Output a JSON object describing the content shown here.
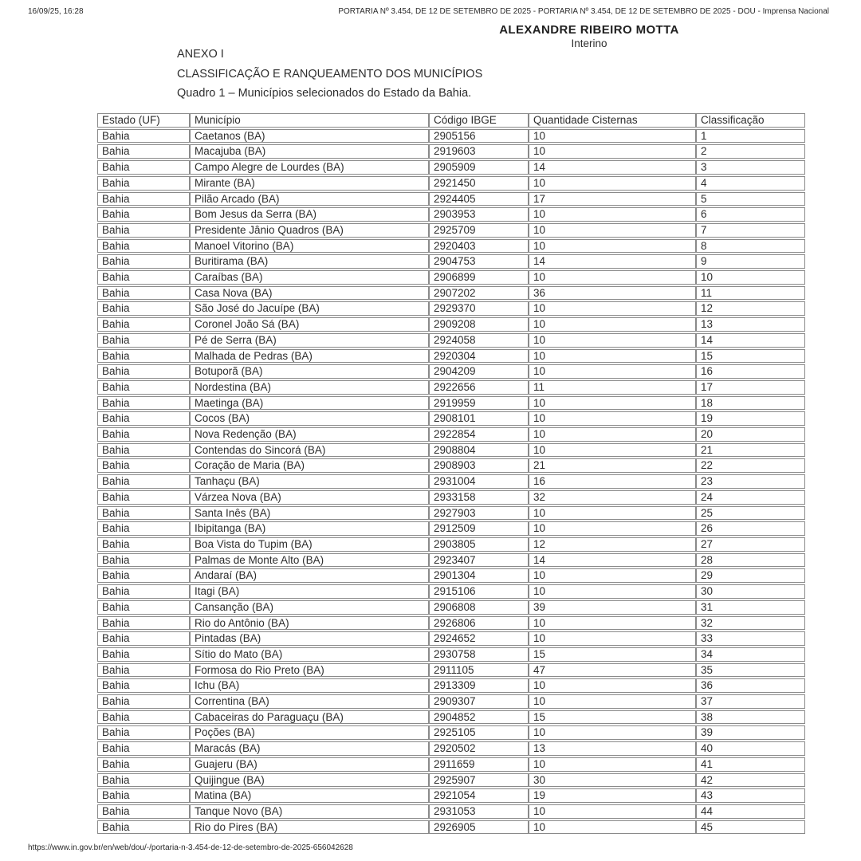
{
  "page": {
    "printed_at": "16/09/25, 16:28",
    "browser_title": "PORTARIA Nº 3.454, DE 12 DE SETEMBRO DE 2025 - PORTARIA Nº 3.454, DE 12 DE SETEMBRO DE 2025 - DOU - Imprensa Nacional",
    "footer_url": "https://www.in.gov.br/en/web/dou/-/portaria-n-3.454-de-12-de-setembro-de-2025-656042628"
  },
  "signature": {
    "name": "ALEXANDRE RIBEIRO MOTTA",
    "role": "Interino"
  },
  "document": {
    "annex_title": "ANEXO I",
    "section_title": "CLASSIFICAÇÃO E RANQUEAMENTO DOS MUNICÍPIOS",
    "table_caption": "Quadro 1 – Municípios selecionados do Estado da Bahia."
  },
  "table": {
    "columns": [
      "Estado (UF)",
      "Município",
      "Código IBGE",
      "Quantidade Cisternas",
      "Classificação"
    ],
    "rows": [
      {
        "estado": "Bahia",
        "municipio": "Caetanos (BA)",
        "codigo_ibge": "2905156",
        "quantidade_cisternas": "10",
        "classificacao": "1"
      },
      {
        "estado": "Bahia",
        "municipio": "Macajuba (BA)",
        "codigo_ibge": "2919603",
        "quantidade_cisternas": "10",
        "classificacao": "2"
      },
      {
        "estado": "Bahia",
        "municipio": "Campo Alegre de Lourdes (BA)",
        "codigo_ibge": "2905909",
        "quantidade_cisternas": "14",
        "classificacao": "3"
      },
      {
        "estado": "Bahia",
        "municipio": "Mirante (BA)",
        "codigo_ibge": "2921450",
        "quantidade_cisternas": "10",
        "classificacao": "4"
      },
      {
        "estado": "Bahia",
        "municipio": "Pilão Arcado (BA)",
        "codigo_ibge": "2924405",
        "quantidade_cisternas": "17",
        "classificacao": "5"
      },
      {
        "estado": "Bahia",
        "municipio": "Bom Jesus da Serra (BA)",
        "codigo_ibge": "2903953",
        "quantidade_cisternas": "10",
        "classificacao": "6"
      },
      {
        "estado": "Bahia",
        "municipio": "Presidente Jânio Quadros (BA)",
        "codigo_ibge": "2925709",
        "quantidade_cisternas": "10",
        "classificacao": "7"
      },
      {
        "estado": "Bahia",
        "municipio": "Manoel Vitorino (BA)",
        "codigo_ibge": "2920403",
        "quantidade_cisternas": "10",
        "classificacao": "8"
      },
      {
        "estado": "Bahia",
        "municipio": "Buritirama (BA)",
        "codigo_ibge": "2904753",
        "quantidade_cisternas": "14",
        "classificacao": "9"
      },
      {
        "estado": "Bahia",
        "municipio": "Caraíbas (BA)",
        "codigo_ibge": "2906899",
        "quantidade_cisternas": "10",
        "classificacao": "10"
      },
      {
        "estado": "Bahia",
        "municipio": "Casa Nova (BA)",
        "codigo_ibge": "2907202",
        "quantidade_cisternas": "36",
        "classificacao": "11"
      },
      {
        "estado": "Bahia",
        "municipio": "São José do Jacuípe (BA)",
        "codigo_ibge": "2929370",
        "quantidade_cisternas": "10",
        "classificacao": "12"
      },
      {
        "estado": "Bahia",
        "municipio": "Coronel João Sá (BA)",
        "codigo_ibge": "2909208",
        "quantidade_cisternas": "10",
        "classificacao": "13"
      },
      {
        "estado": "Bahia",
        "municipio": "Pé de Serra (BA)",
        "codigo_ibge": "2924058",
        "quantidade_cisternas": "10",
        "classificacao": "14"
      },
      {
        "estado": "Bahia",
        "municipio": "Malhada de Pedras (BA)",
        "codigo_ibge": "2920304",
        "quantidade_cisternas": "10",
        "classificacao": "15"
      },
      {
        "estado": "Bahia",
        "municipio": "Botuporã (BA)",
        "codigo_ibge": "2904209",
        "quantidade_cisternas": "10",
        "classificacao": "16"
      },
      {
        "estado": "Bahia",
        "municipio": "Nordestina (BA)",
        "codigo_ibge": "2922656",
        "quantidade_cisternas": "11",
        "classificacao": "17"
      },
      {
        "estado": "Bahia",
        "municipio": "Maetinga (BA)",
        "codigo_ibge": "2919959",
        "quantidade_cisternas": "10",
        "classificacao": "18"
      },
      {
        "estado": "Bahia",
        "municipio": "Cocos (BA)",
        "codigo_ibge": "2908101",
        "quantidade_cisternas": "10",
        "classificacao": "19"
      },
      {
        "estado": "Bahia",
        "municipio": "Nova Redenção (BA)",
        "codigo_ibge": "2922854",
        "quantidade_cisternas": "10",
        "classificacao": "20"
      },
      {
        "estado": "Bahia",
        "municipio": "Contendas do Sincorá (BA)",
        "codigo_ibge": "2908804",
        "quantidade_cisternas": "10",
        "classificacao": "21"
      },
      {
        "estado": "Bahia",
        "municipio": "Coração de Maria (BA)",
        "codigo_ibge": "2908903",
        "quantidade_cisternas": "21",
        "classificacao": "22"
      },
      {
        "estado": "Bahia",
        "municipio": "Tanhaçu (BA)",
        "codigo_ibge": "2931004",
        "quantidade_cisternas": "16",
        "classificacao": "23"
      },
      {
        "estado": "Bahia",
        "municipio": "Várzea Nova (BA)",
        "codigo_ibge": "2933158",
        "quantidade_cisternas": "32",
        "classificacao": "24"
      },
      {
        "estado": "Bahia",
        "municipio": "Santa Inês (BA)",
        "codigo_ibge": "2927903",
        "quantidade_cisternas": "10",
        "classificacao": "25"
      },
      {
        "estado": "Bahia",
        "municipio": "Ibipitanga (BA)",
        "codigo_ibge": "2912509",
        "quantidade_cisternas": "10",
        "classificacao": "26"
      },
      {
        "estado": "Bahia",
        "municipio": "Boa Vista do Tupim (BA)",
        "codigo_ibge": "2903805",
        "quantidade_cisternas": "12",
        "classificacao": "27"
      },
      {
        "estado": "Bahia",
        "municipio": "Palmas de Monte Alto (BA)",
        "codigo_ibge": "2923407",
        "quantidade_cisternas": "14",
        "classificacao": "28"
      },
      {
        "estado": "Bahia",
        "municipio": "Andaraí (BA)",
        "codigo_ibge": "2901304",
        "quantidade_cisternas": "10",
        "classificacao": "29"
      },
      {
        "estado": "Bahia",
        "municipio": "Itagi (BA)",
        "codigo_ibge": "2915106",
        "quantidade_cisternas": "10",
        "classificacao": "30"
      },
      {
        "estado": "Bahia",
        "municipio": "Cansanção (BA)",
        "codigo_ibge": "2906808",
        "quantidade_cisternas": "39",
        "classificacao": "31"
      },
      {
        "estado": "Bahia",
        "municipio": "Rio do Antônio (BA)",
        "codigo_ibge": "2926806",
        "quantidade_cisternas": "10",
        "classificacao": "32"
      },
      {
        "estado": "Bahia",
        "municipio": "Pintadas (BA)",
        "codigo_ibge": "2924652",
        "quantidade_cisternas": "10",
        "classificacao": "33"
      },
      {
        "estado": "Bahia",
        "municipio": "Sítio do Mato (BA)",
        "codigo_ibge": "2930758",
        "quantidade_cisternas": "15",
        "classificacao": "34"
      },
      {
        "estado": "Bahia",
        "municipio": "Formosa do Rio Preto (BA)",
        "codigo_ibge": "2911105",
        "quantidade_cisternas": "47",
        "classificacao": "35"
      },
      {
        "estado": "Bahia",
        "municipio": "Ichu (BA)",
        "codigo_ibge": "2913309",
        "quantidade_cisternas": "10",
        "classificacao": "36"
      },
      {
        "estado": "Bahia",
        "municipio": "Correntina (BA)",
        "codigo_ibge": "2909307",
        "quantidade_cisternas": "10",
        "classificacao": "37"
      },
      {
        "estado": "Bahia",
        "municipio": "Cabaceiras do Paraguaçu (BA)",
        "codigo_ibge": "2904852",
        "quantidade_cisternas": "15",
        "classificacao": "38"
      },
      {
        "estado": "Bahia",
        "municipio": "Poções (BA)",
        "codigo_ibge": "2925105",
        "quantidade_cisternas": "10",
        "classificacao": "39"
      },
      {
        "estado": "Bahia",
        "municipio": "Maracás (BA)",
        "codigo_ibge": "2920502",
        "quantidade_cisternas": "13",
        "classificacao": "40"
      },
      {
        "estado": "Bahia",
        "municipio": "Guajeru (BA)",
        "codigo_ibge": "2911659",
        "quantidade_cisternas": "10",
        "classificacao": "41"
      },
      {
        "estado": "Bahia",
        "municipio": "Quijingue (BA)",
        "codigo_ibge": "2925907",
        "quantidade_cisternas": "30",
        "classificacao": "42"
      },
      {
        "estado": "Bahia",
        "municipio": "Matina (BA)",
        "codigo_ibge": "2921054",
        "quantidade_cisternas": "19",
        "classificacao": "43"
      },
      {
        "estado": "Bahia",
        "municipio": "Tanque Novo (BA)",
        "codigo_ibge": "2931053",
        "quantidade_cisternas": "10",
        "classificacao": "44"
      },
      {
        "estado": "Bahia",
        "municipio": "Rio do Pires (BA)",
        "codigo_ibge": "2926905",
        "quantidade_cisternas": "10",
        "classificacao": "45"
      }
    ]
  }
}
